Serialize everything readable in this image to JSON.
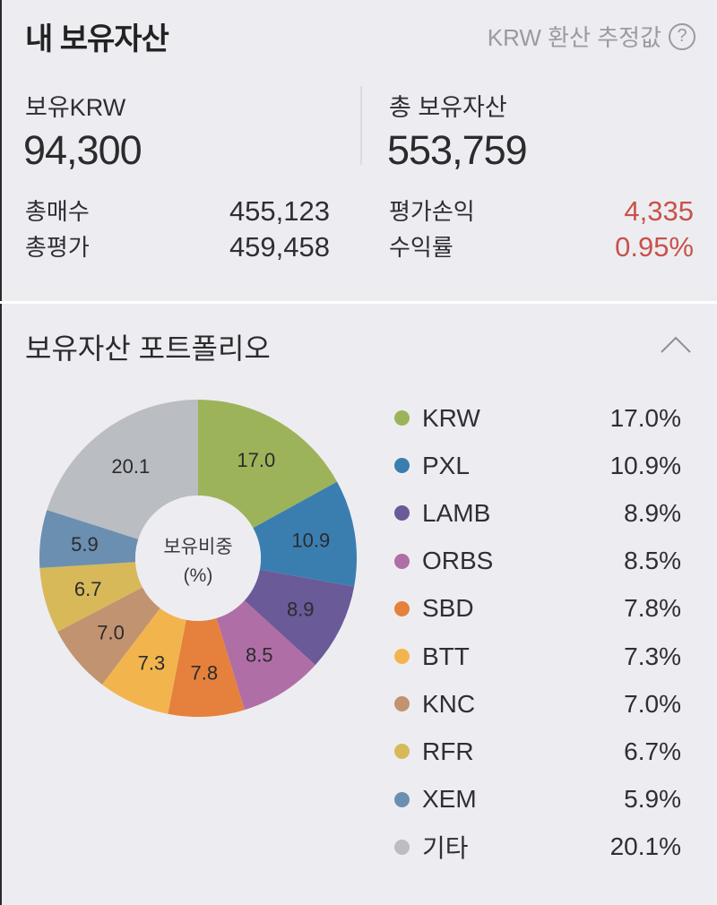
{
  "header": {
    "title": "내 보유자산",
    "krw_note": "KRW 환산 추정값",
    "help_icon": "?"
  },
  "summary": {
    "holding_krw_label": "보유KRW",
    "holding_krw_value": "94,300",
    "total_assets_label": "총 보유자산",
    "total_assets_value": "553,759",
    "total_buy_label": "총매수",
    "total_buy_value": "455,123",
    "total_eval_label": "총평가",
    "total_eval_value": "459,458",
    "pnl_label": "평가손익",
    "pnl_value": "4,335",
    "return_label": "수익률",
    "return_value": "0.95%",
    "positive_color": "#c8524a"
  },
  "portfolio": {
    "title": "보유자산 포트폴리오",
    "center_label_line1": "보유비중",
    "center_label_line2": "(%)"
  },
  "chart_data": {
    "type": "pie",
    "title": "보유자산 포트폴리오",
    "center_label": "보유비중 (%)",
    "donut": true,
    "legend_position": "right",
    "categories": [
      "KRW",
      "PXL",
      "LAMB",
      "ORBS",
      "SBD",
      "BTT",
      "KNC",
      "RFR",
      "XEM",
      "기타"
    ],
    "values": [
      17.0,
      10.9,
      8.9,
      8.5,
      7.8,
      7.3,
      7.0,
      6.7,
      5.9,
      20.1
    ],
    "labels": [
      "17.0",
      "10.9",
      "8.9",
      "8.5",
      "7.8",
      "7.3",
      "7.0",
      "6.7",
      "5.9",
      "20.1"
    ],
    "legend_values": [
      "17.0%",
      "10.9%",
      "8.9%",
      "8.5%",
      "7.8%",
      "7.3%",
      "7.0%",
      "6.7%",
      "5.9%",
      "20.1%"
    ],
    "colors": [
      "#9db35a",
      "#3a7eb0",
      "#6a5a98",
      "#b06ea6",
      "#e5813c",
      "#f2b54e",
      "#c19370",
      "#d8b95a",
      "#6b8fb0",
      "#babdc2"
    ]
  }
}
